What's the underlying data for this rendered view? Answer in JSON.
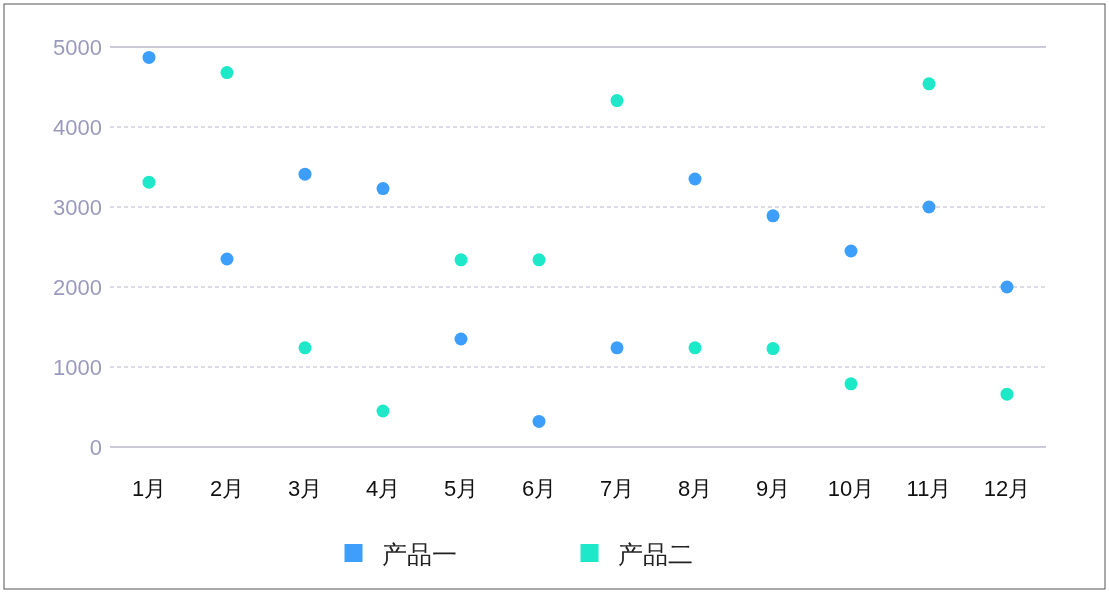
{
  "chart_data": {
    "type": "scatter",
    "categories": [
      "1月",
      "2月",
      "3月",
      "4月",
      "5月",
      "6月",
      "7月",
      "8月",
      "9月",
      "10月",
      "11月",
      "12月"
    ],
    "series": [
      {
        "name": "产品一",
        "color": "#3d9ffb",
        "values": [
          4870,
          2350,
          3410,
          3230,
          1350,
          320,
          1240,
          3350,
          2890,
          2450,
          3000,
          2000
        ]
      },
      {
        "name": "产品二",
        "color": "#1de8c8",
        "values": [
          3310,
          4680,
          1240,
          450,
          2340,
          2340,
          4330,
          1240,
          1230,
          790,
          4540,
          660
        ]
      }
    ],
    "ylim": [
      0,
      5000
    ],
    "yticks": [
      0,
      1000,
      2000,
      3000,
      4000,
      5000
    ],
    "grid": "y",
    "legend": "bottom",
    "marker": "circle"
  }
}
